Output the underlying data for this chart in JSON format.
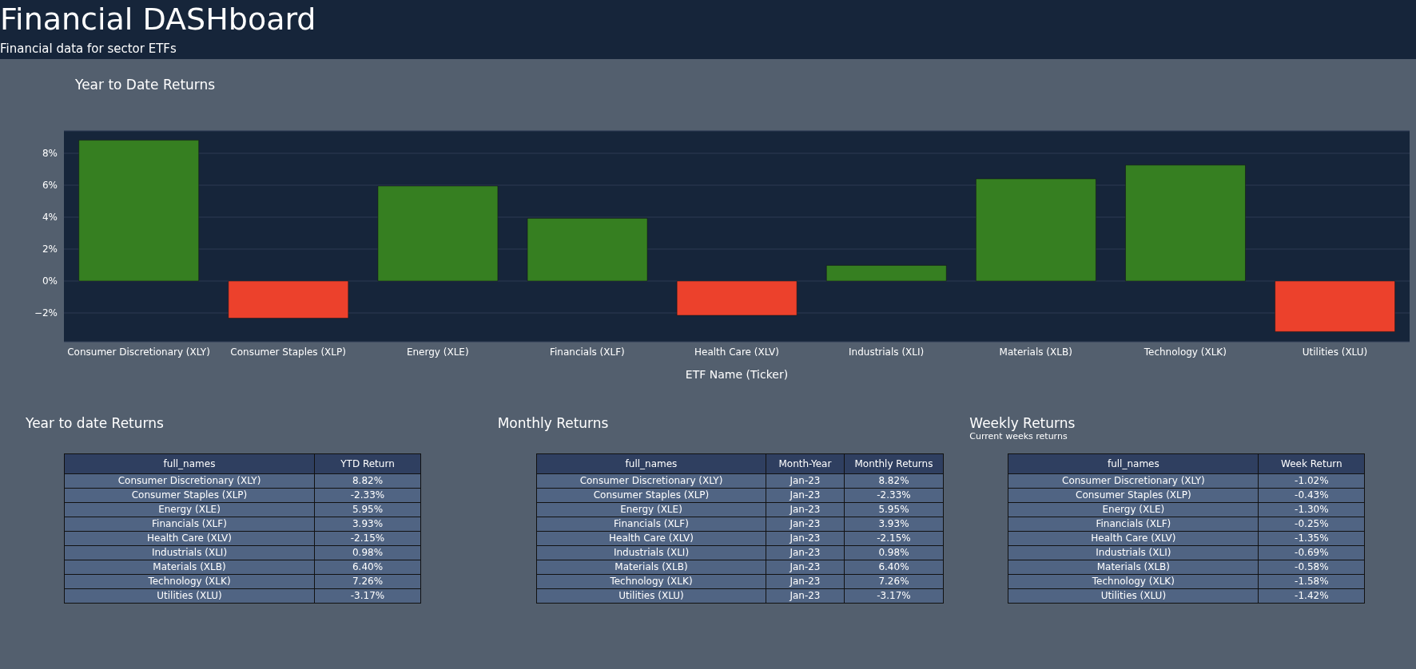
{
  "chart_data": [
    {
      "type": "other",
      "title": "Financial DASHboard",
      "subtitle": "Financial data for sector ETFs"
    },
    {
      "type": "bar",
      "title": "Year to Date Returns",
      "xlabel": "ETF Name (Ticker)",
      "categories": [
        "Consumer Discretionary (XLY)",
        "Consumer Staples (XLP)",
        "Energy (XLE)",
        "Financials (XLF)",
        "Health Care (XLV)",
        "Industrials (XLI)",
        "Materials (XLB)",
        "Technology (XLK)",
        "Utilities (XLU)"
      ],
      "values": [
        8.82,
        -2.33,
        5.95,
        3.93,
        -2.15,
        0.98,
        6.4,
        7.26,
        -3.17
      ],
      "colors": [
        "#367f21",
        "#ec412c",
        "#367f21",
        "#367f21",
        "#ec412c",
        "#367f21",
        "#367f21",
        "#367f21",
        "#ec412c"
      ],
      "ylim": [
        -3.8,
        9.4
      ],
      "yticks": [
        {
          "value": -2,
          "label": "−2%"
        },
        {
          "value": 0,
          "label": "0%"
        },
        {
          "value": 2,
          "label": "2%"
        },
        {
          "value": 4,
          "label": "4%"
        },
        {
          "value": 6,
          "label": "6%"
        },
        {
          "value": 8,
          "label": "8%"
        }
      ],
      "grid": "y"
    },
    {
      "type": "other",
      "title": "Year to date Returns",
      "xlabel": "full_names",
      "categories": [
        "YTD Return"
      ],
      "y_categories": [
        "Consumer Discretionary (XLY)",
        "Consumer Staples (XLP)",
        "Energy (XLE)",
        "Financials (XLF)",
        "Health Care (XLV)",
        "Industrials (XLI)",
        "Materials (XLB)",
        "Technology (XLK)",
        "Utilities (XLU)"
      ],
      "cell_labels": [
        [
          "8.82%"
        ],
        [
          "-2.33%"
        ],
        [
          "5.95%"
        ],
        [
          "3.93%"
        ],
        [
          "-2.15%"
        ],
        [
          "0.98%"
        ],
        [
          "6.40%"
        ],
        [
          "7.26%"
        ],
        [
          "-3.17%"
        ]
      ]
    },
    {
      "type": "other",
      "title": "Monthly Returns",
      "xlabel": "full_names",
      "categories": [
        "Month-Year",
        "Monthly Returns"
      ],
      "y_categories": [
        "Consumer Discretionary (XLY)",
        "Consumer Staples (XLP)",
        "Energy (XLE)",
        "Financials (XLF)",
        "Health Care (XLV)",
        "Industrials (XLI)",
        "Materials (XLB)",
        "Technology (XLK)",
        "Utilities (XLU)"
      ],
      "cell_labels": [
        [
          "Jan-23",
          "8.82%"
        ],
        [
          "Jan-23",
          "-2.33%"
        ],
        [
          "Jan-23",
          "5.95%"
        ],
        [
          "Jan-23",
          "3.93%"
        ],
        [
          "Jan-23",
          "-2.15%"
        ],
        [
          "Jan-23",
          "0.98%"
        ],
        [
          "Jan-23",
          "6.40%"
        ],
        [
          "Jan-23",
          "7.26%"
        ],
        [
          "Jan-23",
          "-3.17%"
        ]
      ]
    },
    {
      "type": "other",
      "title": "Weekly Returns",
      "subtitle": "Current weeks returns",
      "xlabel": "full_names",
      "categories": [
        "Week Return"
      ],
      "y_categories": [
        "Consumer Discretionary (XLY)",
        "Consumer Staples (XLP)",
        "Energy (XLE)",
        "Financials (XLF)",
        "Health Care (XLV)",
        "Industrials (XLI)",
        "Materials (XLB)",
        "Technology (XLK)",
        "Utilities (XLU)"
      ],
      "cell_labels": [
        [
          "-1.02%"
        ],
        [
          "-0.43%"
        ],
        [
          "-1.30%"
        ],
        [
          "-0.25%"
        ],
        [
          "-1.35%"
        ],
        [
          "-0.69%"
        ],
        [
          "-0.58%"
        ],
        [
          "-1.58%"
        ],
        [
          "-1.42%"
        ]
      ]
    }
  ]
}
